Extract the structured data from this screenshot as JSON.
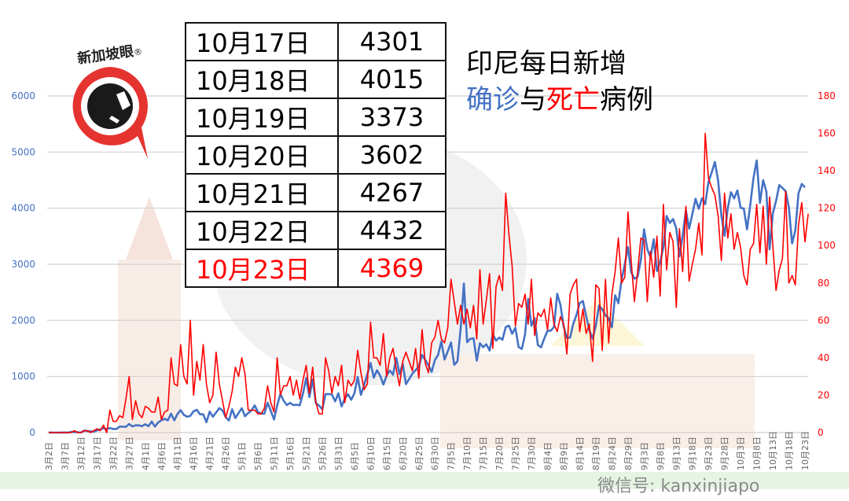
{
  "title": {
    "line1": "印尼每日新增",
    "part_cases": "确诊",
    "part_and": "与",
    "part_deaths": "死亡",
    "part_suffix": "病例"
  },
  "logo": {
    "text": "新加坡眼",
    "mark": "®"
  },
  "watermark": "微信号: kanxinjiapo",
  "table": [
    {
      "date": "10月17日",
      "value": "4301"
    },
    {
      "date": "10月18日",
      "value": "4015"
    },
    {
      "date": "10月19日",
      "value": "3373"
    },
    {
      "date": "10月20日",
      "value": "3602"
    },
    {
      "date": "10月21日",
      "value": "4267"
    },
    {
      "date": "10月22日",
      "value": "4432"
    },
    {
      "date": "10月23日",
      "value": "4369",
      "highlight": true
    }
  ],
  "chart_data": {
    "type": "line",
    "x_start": "3月2日",
    "x_end": "10月23日",
    "x_tick_labels": [
      "3月2日",
      "3月7日",
      "3月12日",
      "3月17日",
      "3月22日",
      "3月27日",
      "4月1日",
      "4月6日",
      "4月11日",
      "4月16日",
      "4月21日",
      "4月26日",
      "5月1日",
      "5月6日",
      "5月11日",
      "5月16日",
      "5月21日",
      "5月26日",
      "5月31日",
      "6月5日",
      "6月10日",
      "6月15日",
      "6月20日",
      "6月25日",
      "6月30日",
      "7月5日",
      "7月10日",
      "7月15日",
      "7月20日",
      "7月25日",
      "7月30日",
      "8月4日",
      "8月9日",
      "8月14日",
      "8月19日",
      "8月24日",
      "8月29日",
      "9月3日",
      "9月8日",
      "9月13日",
      "9月18日",
      "9月23日",
      "9月28日",
      "10月3日",
      "10月8日",
      "10月13日",
      "10月18日",
      "10月23日"
    ],
    "y_left": {
      "range": [
        0,
        6000
      ],
      "ticks": [
        "0",
        "1000",
        "2000",
        "3000",
        "4000",
        "5000",
        "6000"
      ],
      "color": "#4472c4"
    },
    "y_right": {
      "range": [
        0,
        180
      ],
      "ticks": [
        "0",
        "20",
        "40",
        "60",
        "80",
        "100",
        "120",
        "140",
        "160",
        "180"
      ],
      "color": "#ff0000"
    },
    "grid": true,
    "series": [
      {
        "axis": "left",
        "color": "#4472c4",
        "values": [
          2,
          0,
          0,
          0,
          2,
          2,
          0,
          13,
          8,
          7,
          0,
          35,
          27,
          21,
          17,
          38,
          55,
          82,
          60,
          81,
          64,
          65,
          106,
          105,
          103,
          153,
          109,
          130,
          129,
          114,
          149,
          113,
          196,
          106,
          181,
          218,
          247,
          218,
          337,
          219,
          330,
          399,
          316,
          282,
          297,
          380,
          407,
          325,
          327,
          185,
          375,
          283,
          357,
          436,
          396,
          275,
          214,
          415,
          260,
          347,
          433,
          292,
          349,
          395,
          484,
          367,
          338,
          336,
          533,
          387,
          233,
          484,
          689,
          568,
          490,
          529,
          489,
          496,
          486,
          693,
          973,
          634,
          949,
          526,
          479,
          415,
          686,
          687,
          678,
          557,
          700,
          467,
          609,
          684,
          585,
          703,
          993,
          672,
          847,
          1043,
          1241,
          979,
          1111,
          1014,
          857,
          1017,
          1106,
          1031,
          1331,
          1041,
          1226,
          862,
          954,
          1051,
          1113,
          1178,
          1385,
          1294,
          1198,
          1082,
          1293,
          1385,
          1624,
          1301,
          1447,
          1607,
          1209,
          1268,
          1853,
          2657,
          1611,
          1671,
          1681,
          1282,
          1591,
          1522,
          1574,
          1462,
          1752,
          1639,
          1693,
          1655,
          1882,
          1906,
          1761,
          1868,
          1525,
          1492,
          1748,
          2381,
          1904,
          2040,
          1560,
          1519,
          1679,
          1815,
          1815,
          1882,
          2473,
          2277,
          1893,
          1687,
          1693,
          1942,
          2098,
          2307,
          2345,
          2081,
          1821,
          1673,
          1902,
          2266,
          2197,
          2090,
          2037,
          1877,
          2447,
          2306,
          2719,
          3003,
          3308,
          2858,
          2743,
          2775,
          3075,
          3622,
          3269,
          3128,
          3444,
          2880,
          3046,
          3307,
          3861,
          3737,
          3806,
          3636,
          3141,
          3507,
          3963,
          3635,
          3891,
          4168,
          3989,
          4176,
          4071,
          4465,
          4634,
          4823,
          4494,
          3874,
          3509,
          4002,
          4284,
          4174,
          4317,
          4007,
          3992,
          3622,
          4056,
          4538,
          4850,
          4094,
          4497,
          4294,
          3267,
          3906,
          4127,
          4411,
          4360,
          4301,
          4015,
          3373,
          3602,
          4267,
          4432,
          4369
        ]
      },
      {
        "axis": "right",
        "color": "#ff0000",
        "values": [
          0,
          0,
          0,
          0,
          0,
          0,
          0,
          0,
          1,
          0,
          0,
          1,
          1,
          0,
          1,
          2,
          1,
          4,
          0,
          12,
          6,
          6,
          9,
          8,
          18,
          30,
          7,
          17,
          10,
          8,
          14,
          13,
          11,
          11,
          19,
          7,
          11,
          12,
          40,
          26,
          25,
          47,
          30,
          26,
          60,
          20,
          38,
          28,
          47,
          26,
          16,
          20,
          43,
          26,
          17,
          8,
          14,
          22,
          35,
          30,
          40,
          31,
          12,
          12,
          12,
          10,
          10,
          13,
          25,
          16,
          11,
          40,
          20,
          25,
          25,
          30,
          20,
          28,
          18,
          28,
          36,
          21,
          35,
          16,
          10,
          10,
          40,
          33,
          21,
          30,
          25,
          36,
          16,
          28,
          25,
          28,
          44,
          32,
          23,
          26,
          59,
          40,
          40,
          36,
          53,
          30,
          40,
          45,
          34,
          25,
          38,
          43,
          38,
          33,
          45,
          29,
          55,
          37,
          32,
          48,
          51,
          60,
          50,
          48,
          56,
          82,
          70,
          58,
          68,
          58,
          66,
          56,
          68,
          50,
          87,
          58,
          71,
          85,
          45,
          78,
          84,
          76,
          128,
          106,
          89,
          57,
          69,
          67,
          74,
          58,
          82,
          52,
          64,
          62,
          66,
          55,
          72,
          58,
          54,
          62,
          58,
          42,
          74,
          79,
          82,
          54,
          66,
          53,
          58,
          38,
          79,
          77,
          44,
          82,
          48,
          74,
          86,
          104,
          80,
          83,
          118,
          92,
          70,
          86,
          104,
          103,
          70,
          97,
          83,
          105,
          73,
          122,
          87,
          107,
          102,
          67,
          109,
          86,
          121,
          81,
          90,
          98,
          112,
          95,
          160,
          136,
          131,
          127,
          116,
          92,
          128,
          104,
          117,
          98,
          107,
          99,
          84,
          79,
          98,
          101,
          122,
          96,
          121,
          90,
          126,
          100,
          76,
          87,
          93,
          129,
          80,
          84,
          79,
          111,
          123,
          102,
          117
        ]
      }
    ]
  }
}
